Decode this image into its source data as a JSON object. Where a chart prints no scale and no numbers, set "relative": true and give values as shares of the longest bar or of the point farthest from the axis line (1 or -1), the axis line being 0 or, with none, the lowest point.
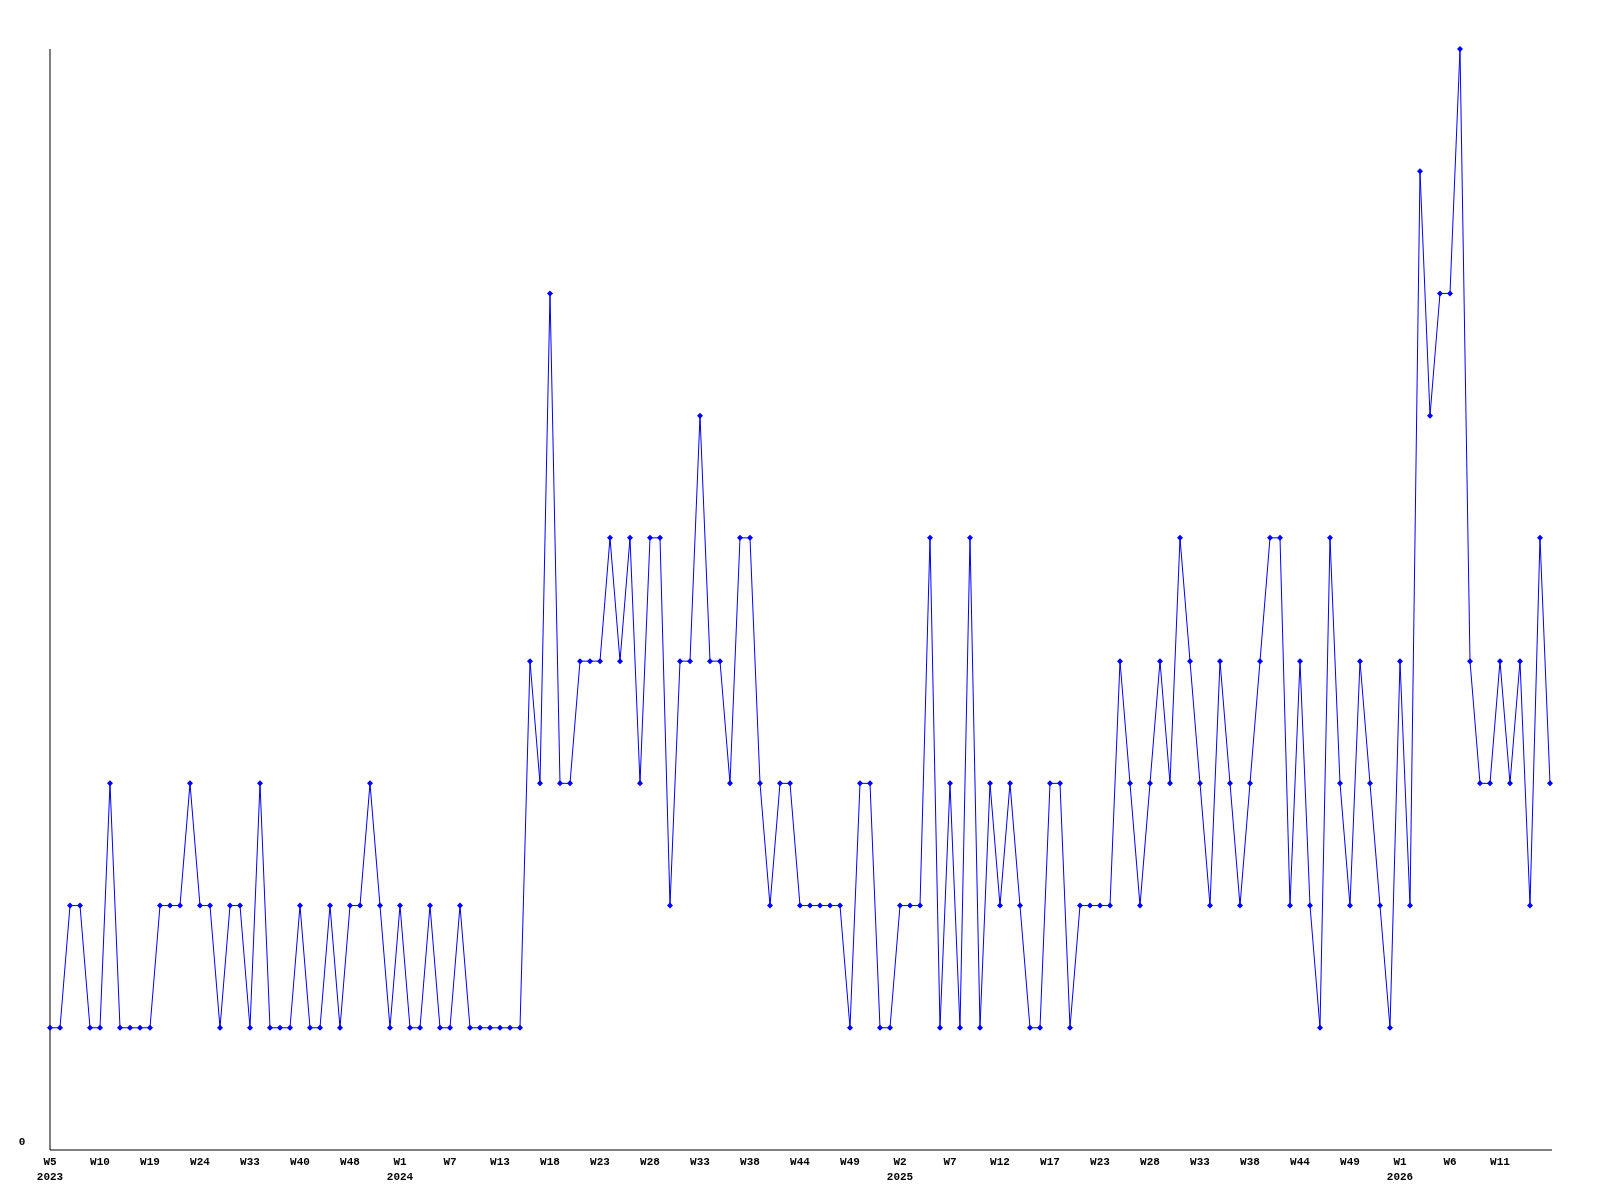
{
  "chart_data": {
    "type": "line",
    "relative": true,
    "marker": "diamond",
    "line_style": "solid",
    "annotations": [
      "0"
    ],
    "categories": [
      "W5\n2023",
      null,
      null,
      null,
      null,
      "W10",
      null,
      null,
      null,
      null,
      "W19",
      null,
      null,
      null,
      null,
      "W24",
      null,
      null,
      null,
      null,
      "W33",
      null,
      null,
      null,
      null,
      "W40",
      null,
      null,
      null,
      null,
      "W48",
      null,
      null,
      null,
      null,
      "W1\n2024",
      null,
      null,
      null,
      null,
      "W7",
      null,
      null,
      null,
      null,
      "W13",
      null,
      null,
      null,
      null,
      "W18",
      null,
      null,
      null,
      null,
      "W23",
      null,
      null,
      null,
      null,
      "W28",
      null,
      null,
      null,
      null,
      "W33",
      null,
      null,
      null,
      null,
      "W38",
      null,
      null,
      null,
      null,
      "W44",
      null,
      null,
      null,
      null,
      "W49",
      null,
      null,
      null,
      null,
      "W2\n2025",
      null,
      null,
      null,
      null,
      "W7",
      null,
      null,
      null,
      null,
      "W12",
      null,
      null,
      null,
      null,
      "W17",
      null,
      null,
      null,
      null,
      "W23",
      null,
      null,
      null,
      null,
      "W28",
      null,
      null,
      null,
      null,
      "W33",
      null,
      null,
      null,
      null,
      "W38",
      null,
      null,
      null,
      null,
      "W44",
      null,
      null,
      null,
      null,
      "W49",
      null,
      null,
      null,
      null,
      "W1\n2026",
      null,
      null,
      null,
      null,
      "W6",
      null,
      null,
      null,
      null,
      "W11",
      null,
      null,
      null,
      null,
      null
    ],
    "series": [
      {
        "color": "#0000ff",
        "values": [
          0.111,
          0.111,
          0.222,
          0.222,
          0.111,
          0.111,
          0.333,
          0.111,
          0.111,
          0.111,
          0.111,
          0.222,
          0.222,
          0.222,
          0.333,
          0.222,
          0.222,
          0.111,
          0.222,
          0.222,
          0.111,
          0.333,
          0.111,
          0.111,
          0.111,
          0.222,
          0.111,
          0.111,
          0.222,
          0.111,
          0.222,
          0.222,
          0.333,
          0.222,
          0.111,
          0.222,
          0.111,
          0.111,
          0.222,
          0.111,
          0.111,
          0.222,
          0.111,
          0.111,
          0.111,
          0.111,
          0.111,
          0.111,
          0.444,
          0.333,
          0.778,
          0.333,
          0.333,
          0.444,
          0.444,
          0.444,
          0.556,
          0.444,
          0.556,
          0.333,
          0.556,
          0.556,
          0.222,
          0.444,
          0.444,
          0.667,
          0.444,
          0.444,
          0.333,
          0.556,
          0.556,
          0.333,
          0.222,
          0.333,
          0.333,
          0.222,
          0.222,
          0.222,
          0.222,
          0.222,
          0.111,
          0.333,
          0.333,
          0.111,
          0.111,
          0.222,
          0.222,
          0.222,
          0.556,
          0.111,
          0.333,
          0.111,
          0.556,
          0.111,
          0.333,
          0.222,
          0.333,
          0.222,
          0.111,
          0.111,
          0.333,
          0.333,
          0.111,
          0.222,
          0.222,
          0.222,
          0.222,
          0.444,
          0.333,
          0.222,
          0.333,
          0.444,
          0.333,
          0.556,
          0.444,
          0.333,
          0.222,
          0.444,
          0.333,
          0.222,
          0.333,
          0.444,
          0.556,
          0.556,
          0.222,
          0.444,
          0.222,
          0.111,
          0.556,
          0.333,
          0.222,
          0.444,
          0.333,
          0.222,
          0.111,
          0.444,
          0.222,
          0.889,
          0.667,
          0.778,
          0.778,
          1,
          0.444,
          0.333,
          0.333,
          0.444,
          0.333,
          0.444,
          0.222,
          0.556,
          0.333
        ]
      }
    ]
  }
}
